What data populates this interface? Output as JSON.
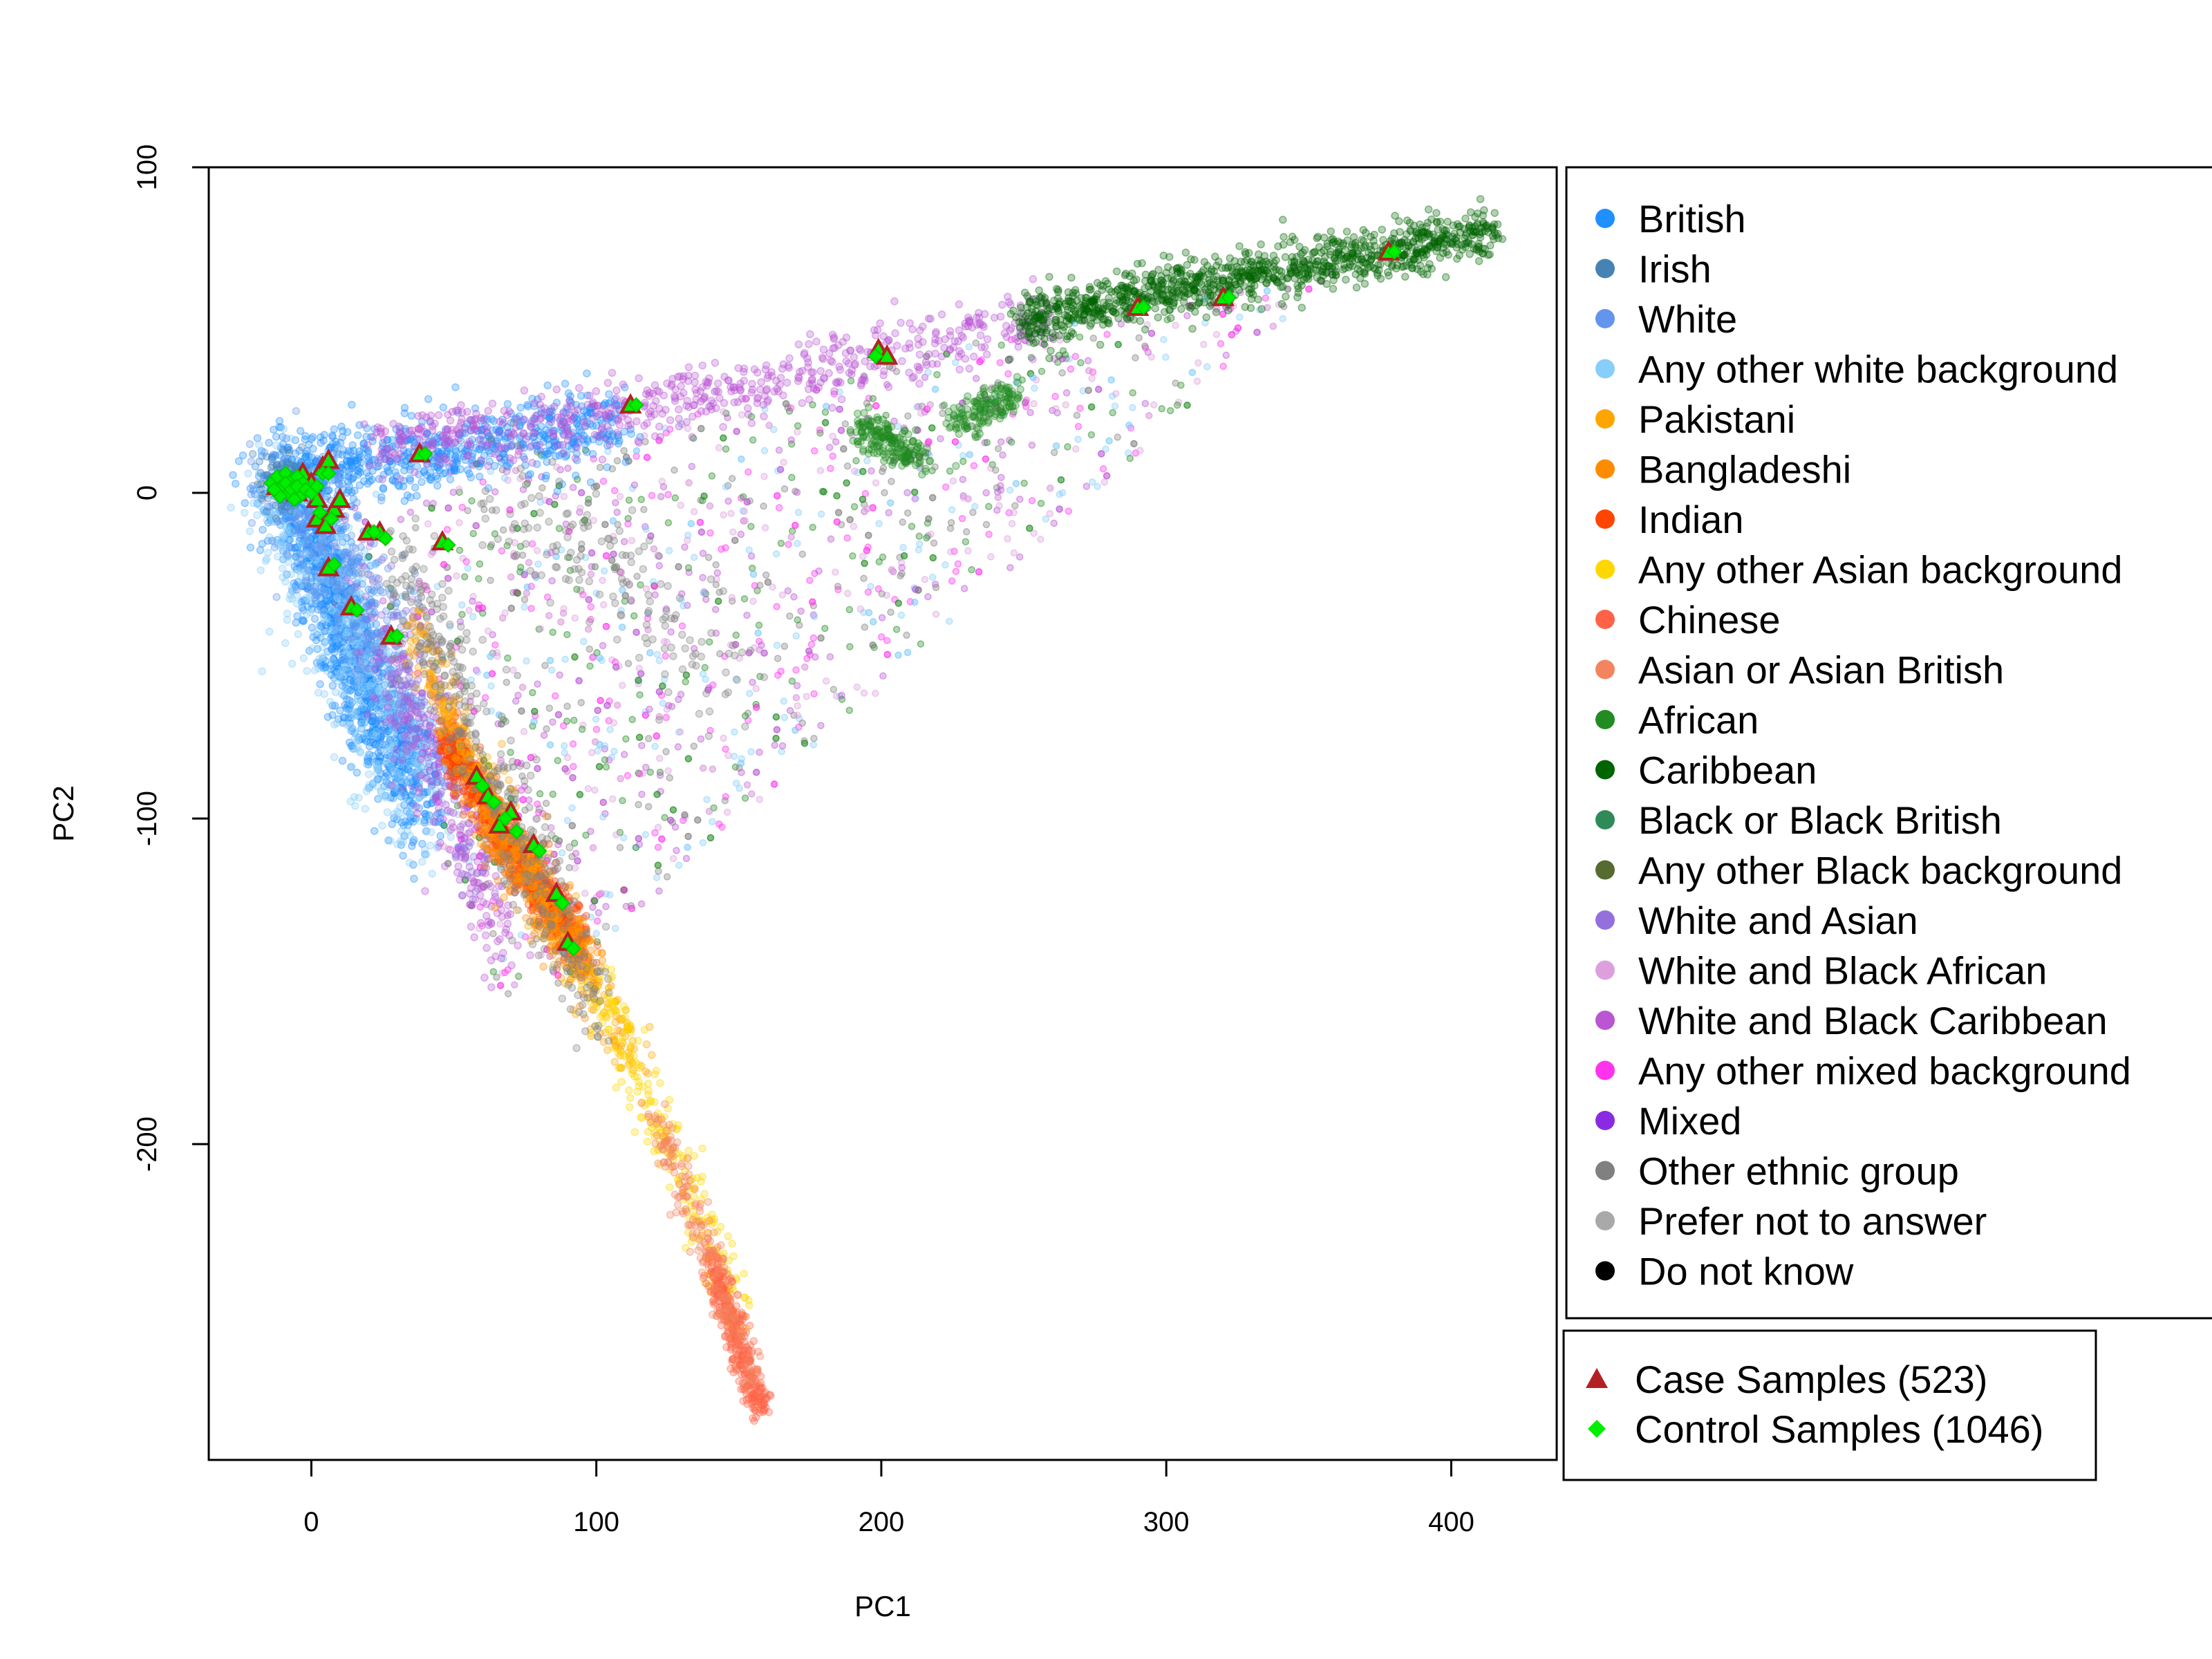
{
  "chart_data": {
    "type": "scatter",
    "title": "",
    "xlabel": "PC1",
    "ylabel": "PC2",
    "xlim": [
      -36,
      437
    ],
    "ylim": [
      -297,
      100
    ],
    "x_ticks": [
      0,
      100,
      200,
      300,
      400
    ],
    "x_tick_labels": [
      "0",
      "100",
      "200",
      "300",
      "400"
    ],
    "y_ticks": [
      -200,
      -100,
      0,
      100
    ],
    "y_tick_labels": [
      "-200",
      "-100",
      "0",
      "100"
    ],
    "grid": false,
    "legend_placement": "right",
    "groups": [
      {
        "name": "British",
        "color": "#1E90FF"
      },
      {
        "name": "Irish",
        "color": "#4682B4"
      },
      {
        "name": "White",
        "color": "#6495ED"
      },
      {
        "name": "Any other white background",
        "color": "#87CEFA"
      },
      {
        "name": "Pakistani",
        "color": "#FFA500"
      },
      {
        "name": "Bangladeshi",
        "color": "#FF8C00"
      },
      {
        "name": "Indian",
        "color": "#FF4500"
      },
      {
        "name": "Any other Asian background",
        "color": "#FFD700"
      },
      {
        "name": "Chinese",
        "color": "#FF6347"
      },
      {
        "name": "Asian or Asian British",
        "color": "#F4845F"
      },
      {
        "name": "African",
        "color": "#228B22"
      },
      {
        "name": "Caribbean",
        "color": "#006400"
      },
      {
        "name": "Black or Black British",
        "color": "#2E8B57"
      },
      {
        "name": "Any other Black background",
        "color": "#556B2F"
      },
      {
        "name": "White and Asian",
        "color": "#9370DB"
      },
      {
        "name": "White and Black African",
        "color": "#DDA0DD"
      },
      {
        "name": "White and Black Caribbean",
        "color": "#BA55D3"
      },
      {
        "name": "Any other mixed background",
        "color": "#FF33EE"
      },
      {
        "name": "Mixed",
        "color": "#8A2BE2"
      },
      {
        "name": "Other ethnic group",
        "color": "#808080"
      },
      {
        "name": "Prefer not to answer",
        "color": "#A9A9A9"
      },
      {
        "name": "Do not know",
        "color": "#000000"
      }
    ],
    "sample_legend": [
      {
        "name": "Case Samples (523)",
        "shape": "triangle",
        "color": "#B22222"
      },
      {
        "name": "Control Samples (1046)",
        "shape": "diamond",
        "color": "#00EE00"
      }
    ],
    "clusters": [
      {
        "group": 0,
        "n": 1400,
        "path": [
          [
            -14,
            3
          ],
          [
            0,
            -10
          ],
          [
            10,
            -40
          ],
          [
            25,
            -70
          ],
          [
            40,
            -95
          ]
        ],
        "spread": 9
      },
      {
        "group": 0,
        "n": 700,
        "path": [
          [
            -10,
            6
          ],
          [
            20,
            10
          ],
          [
            60,
            14
          ],
          [
            110,
            22
          ]
        ],
        "spread": 6
      },
      {
        "group": 3,
        "n": 500,
        "path": [
          [
            -14,
            0
          ],
          [
            5,
            -30
          ],
          [
            20,
            -60
          ],
          [
            40,
            -100
          ]
        ],
        "spread": 12
      },
      {
        "group": 2,
        "n": 300,
        "path": [
          [
            -12,
            2
          ],
          [
            10,
            -20
          ],
          [
            30,
            -50
          ]
        ],
        "spread": 10
      },
      {
        "group": 1,
        "n": 120,
        "path": [
          [
            -14,
            4
          ],
          [
            -5,
            2
          ]
        ],
        "spread": 5
      },
      {
        "group": 16,
        "n": 650,
        "path": [
          [
            20,
            14
          ],
          [
            80,
            20
          ],
          [
            140,
            30
          ],
          [
            200,
            42
          ],
          [
            260,
            54
          ]
        ],
        "spread": 5
      },
      {
        "group": 16,
        "n": 250,
        "path": [
          [
            25,
            -50
          ],
          [
            45,
            -85
          ],
          [
            60,
            -120
          ],
          [
            70,
            -137
          ]
        ],
        "spread": 8
      },
      {
        "group": 14,
        "n": 150,
        "path": [
          [
            20,
            -30
          ],
          [
            40,
            -70
          ],
          [
            60,
            -120
          ]
        ],
        "spread": 8
      },
      {
        "group": 11,
        "n": 1100,
        "path": [
          [
            250,
            52
          ],
          [
            300,
            62
          ],
          [
            350,
            70
          ],
          [
            390,
            76
          ],
          [
            415,
            81
          ]
        ],
        "spread": 4
      },
      {
        "group": 10,
        "n": 200,
        "path": [
          [
            192,
            20
          ],
          [
            205,
            15
          ],
          [
            215,
            10
          ]
        ],
        "spread": 3
      },
      {
        "group": 10,
        "n": 150,
        "path": [
          [
            225,
            22
          ],
          [
            238,
            26
          ],
          [
            248,
            30
          ]
        ],
        "spread": 3
      },
      {
        "group": 6,
        "n": 1000,
        "path": [
          [
            48,
            -75
          ],
          [
            60,
            -95
          ],
          [
            75,
            -115
          ],
          [
            85,
            -128
          ],
          [
            95,
            -140
          ]
        ],
        "spread": 4
      },
      {
        "group": 4,
        "n": 450,
        "path": [
          [
            35,
            -40
          ],
          [
            55,
            -80
          ],
          [
            80,
            -120
          ],
          [
            100,
            -155
          ],
          [
            115,
            -175
          ]
        ],
        "spread": 5
      },
      {
        "group": 5,
        "n": 250,
        "path": [
          [
            60,
            -100
          ],
          [
            80,
            -125
          ],
          [
            100,
            -150
          ]
        ],
        "spread": 5
      },
      {
        "group": 7,
        "n": 250,
        "path": [
          [
            100,
            -150
          ],
          [
            125,
            -200
          ],
          [
            140,
            -230
          ],
          [
            150,
            -255
          ]
        ],
        "spread": 5
      },
      {
        "group": 8,
        "n": 350,
        "path": [
          [
            140,
            -235
          ],
          [
            150,
            -262
          ],
          [
            158,
            -282
          ]
        ],
        "spread": 3
      },
      {
        "group": 9,
        "n": 200,
        "path": [
          [
            120,
            -190
          ],
          [
            140,
            -235
          ],
          [
            155,
            -275
          ]
        ],
        "spread": 4
      },
      {
        "group": 19,
        "n": 400,
        "path": [
          [
            30,
            -20
          ],
          [
            45,
            -50
          ],
          [
            60,
            -80
          ],
          [
            80,
            -120
          ],
          [
            100,
            -160
          ]
        ],
        "spread": 8
      },
      {
        "group": 19,
        "n": 150,
        "path": [
          [
            60,
            0
          ],
          [
            100,
            -20
          ],
          [
            150,
            -60
          ]
        ],
        "spread": 10
      }
    ],
    "scatter_fields": [
      {
        "groups": [
          16,
          17,
          15,
          19,
          10,
          3
        ],
        "n": 1800,
        "bounds": "triangle"
      }
    ],
    "case_points": [
      [
        -12,
        2
      ],
      [
        -8,
        4
      ],
      [
        -5,
        0
      ],
      [
        -3,
        6
      ],
      [
        0,
        3
      ],
      [
        2,
        -2
      ],
      [
        4,
        8
      ],
      [
        6,
        10
      ],
      [
        8,
        -5
      ],
      [
        10,
        -2
      ],
      [
        2,
        -8
      ],
      [
        5,
        -10
      ],
      [
        20,
        -12
      ],
      [
        24,
        -12
      ],
      [
        14,
        -35
      ],
      [
        28,
        -44
      ],
      [
        6,
        -23
      ],
      [
        38,
        12
      ],
      [
        46,
        -15
      ],
      [
        112,
        27
      ],
      [
        199,
        44
      ],
      [
        202,
        42
      ],
      [
        58,
        -87
      ],
      [
        62,
        -93
      ],
      [
        66,
        -102
      ],
      [
        70,
        -98
      ],
      [
        78,
        -108
      ],
      [
        86,
        -123
      ],
      [
        90,
        -138
      ],
      [
        290,
        57
      ],
      [
        320,
        60
      ],
      [
        378,
        74
      ]
    ],
    "control_points": [
      [
        -14,
        3
      ],
      [
        -12,
        5
      ],
      [
        -10,
        2
      ],
      [
        -9,
        6
      ],
      [
        -8,
        0
      ],
      [
        -7,
        4
      ],
      [
        -6,
        2
      ],
      [
        -5,
        5
      ],
      [
        -4,
        -1
      ],
      [
        -3,
        3
      ],
      [
        -11,
        -1
      ],
      [
        -13,
        1
      ],
      [
        -9,
        3
      ],
      [
        -7,
        1
      ],
      [
        -6,
        -2
      ],
      [
        -5,
        2
      ],
      [
        -2,
        1
      ],
      [
        0,
        0
      ],
      [
        2,
        2
      ],
      [
        4,
        6
      ],
      [
        6,
        6
      ],
      [
        3,
        -6
      ],
      [
        7,
        -8
      ],
      [
        22,
        -12
      ],
      [
        26,
        -14
      ],
      [
        16,
        -36
      ],
      [
        30,
        -44
      ],
      [
        8,
        -22
      ],
      [
        40,
        12
      ],
      [
        48,
        -16
      ],
      [
        114,
        27
      ],
      [
        198,
        42
      ],
      [
        60,
        -90
      ],
      [
        64,
        -95
      ],
      [
        68,
        -100
      ],
      [
        72,
        -104
      ],
      [
        80,
        -110
      ],
      [
        88,
        -126
      ],
      [
        92,
        -140
      ],
      [
        292,
        57
      ],
      [
        322,
        60
      ],
      [
        380,
        74
      ]
    ]
  }
}
